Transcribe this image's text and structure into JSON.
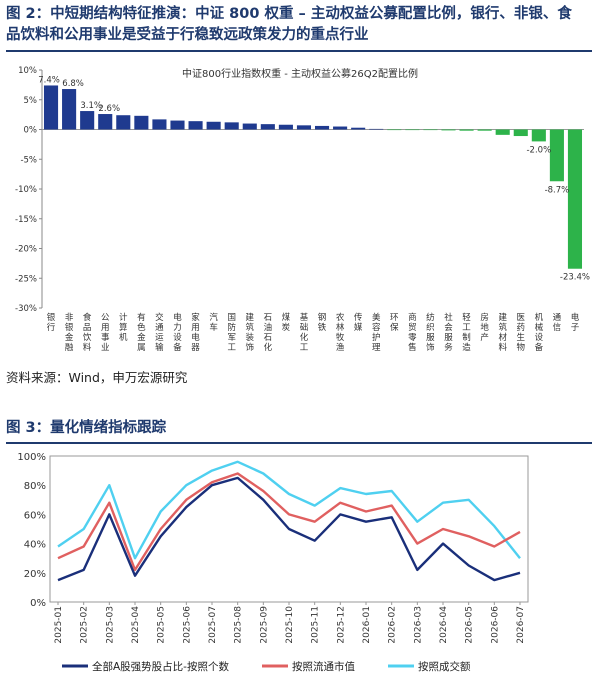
{
  "figure2": {
    "title_line1": "图 2：中短期结构特征推演：中证 800 权重 – 主动权益公募配置比例，银行、非银、食",
    "title_line2": "品饮料和公用事业是受益于行稳致远政策发力的重点行业",
    "source": "资料来源：Wind，申万宏源研究"
  },
  "figure3": {
    "title": "图 3：量化情绪指标跟踪"
  },
  "chart_data": [
    {
      "type": "bar",
      "title": "中证800行业指数权重 - 主动权益公募26Q2配置比例",
      "categories": [
        "银行",
        "非银金融",
        "食品饮料",
        "公用事业",
        "计算机",
        "有色金属",
        "交通运输",
        "电力设备",
        "家用电器",
        "汽车",
        "国防军工",
        "建筑装饰",
        "石油石化",
        "煤炭",
        "基础化工",
        "钢铁",
        "农林牧渔",
        "传媒",
        "美容护理",
        "环保",
        "商贸零售",
        "纺织服饰",
        "社会服务",
        "轻工制造",
        "房地产",
        "建筑材料",
        "医药生物",
        "机械设备",
        "通信",
        "电子"
      ],
      "values": [
        7.4,
        6.8,
        3.1,
        2.6,
        2.4,
        2.3,
        1.7,
        1.5,
        1.4,
        1.3,
        1.2,
        1.0,
        0.9,
        0.8,
        0.7,
        0.6,
        0.5,
        0.3,
        0.1,
        -0.05,
        -0.1,
        -0.1,
        -0.15,
        -0.2,
        -0.2,
        -0.9,
        -1.1,
        -2.0,
        -8.7,
        -23.4
      ],
      "data_labels": [
        {
          "index": 0,
          "text": "7.4%"
        },
        {
          "index": 1,
          "text": "6.8%"
        },
        {
          "index": 2,
          "text": "3.1%"
        },
        {
          "index": 3,
          "text": "2.6%"
        },
        {
          "index": 27,
          "text": "-2.0%"
        },
        {
          "index": 28,
          "text": "-8.7%"
        },
        {
          "index": 29,
          "text": "-23.4%"
        }
      ],
      "ylim": [
        -30,
        10
      ],
      "yticks": [
        "10%",
        "5%",
        "0%",
        "-5%",
        "-10%",
        "-15%",
        "-20%",
        "-25%",
        "-30%"
      ],
      "ytick_values": [
        10,
        5,
        0,
        -5,
        -10,
        -15,
        -20,
        -25,
        -30
      ],
      "positive_color": "#1f3a8f",
      "negative_color": "#2db34a"
    },
    {
      "type": "line",
      "x": [
        "2025-01",
        "2025-02",
        "2025-03",
        "2025-04",
        "2025-05",
        "2025-06",
        "2025-07",
        "2025-08",
        "2025-09",
        "2025-10",
        "2025-11",
        "2025-12",
        "2026-01",
        "2026-02",
        "2026-03",
        "2026-04",
        "2026-05",
        "2026-06",
        "2026-07"
      ],
      "ylim": [
        0,
        100
      ],
      "yticks": [
        "100%",
        "80%",
        "60%",
        "40%",
        "20%",
        "0%"
      ],
      "ytick_values": [
        100,
        80,
        60,
        40,
        20,
        0
      ],
      "series": [
        {
          "name": "全部A股强势股占比-按照个数",
          "color": "#1a2f7a",
          "values": [
            15,
            22,
            60,
            18,
            45,
            65,
            80,
            85,
            70,
            50,
            42,
            60,
            55,
            58,
            22,
            40,
            25,
            15,
            20
          ]
        },
        {
          "name": "按照流通市值",
          "color": "#e06060",
          "values": [
            30,
            38,
            68,
            22,
            50,
            70,
            82,
            88,
            76,
            60,
            55,
            68,
            62,
            66,
            40,
            50,
            45,
            38,
            48
          ]
        },
        {
          "name": "按照成交额",
          "color": "#4fd0f0",
          "values": [
            38,
            50,
            80,
            30,
            62,
            80,
            90,
            96,
            88,
            74,
            66,
            78,
            74,
            76,
            55,
            68,
            70,
            52,
            30
          ]
        }
      ]
    }
  ]
}
